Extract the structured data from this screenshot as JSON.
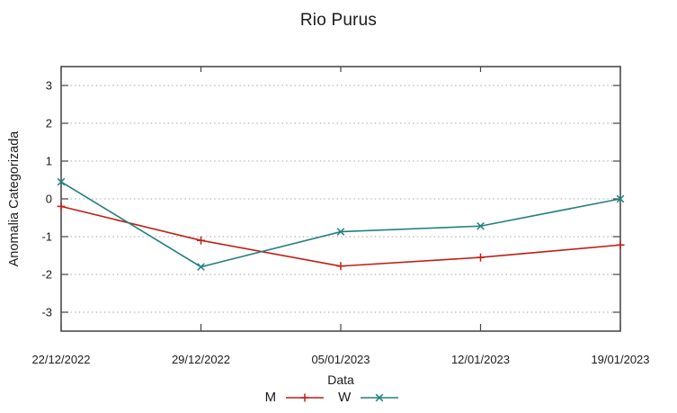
{
  "chart_data": {
    "type": "line",
    "title": "Rio Purus",
    "xlabel": "Data",
    "ylabel": "Anomalia Categorizada",
    "categories": [
      "22/12/2022",
      "29/12/2022",
      "05/01/2023",
      "12/01/2023",
      "19/01/2023"
    ],
    "yticks": [
      -3,
      -2,
      -1,
      0,
      1,
      2,
      3
    ],
    "ylim": [
      -3.5,
      3.5
    ],
    "grid": "horizontal-dotted",
    "legend_position": "bottom-center",
    "series": [
      {
        "name": "M",
        "marker": "plus",
        "color": "#c01e15",
        "values": [
          -0.2,
          -1.1,
          -1.78,
          -1.55,
          -1.22
        ]
      },
      {
        "name": "W",
        "marker": "cross",
        "color": "#257f7f",
        "values": [
          0.45,
          -1.8,
          -0.87,
          -0.72,
          0.0
        ]
      }
    ]
  },
  "style": {
    "grid_color": "#a6a6a6",
    "border_color": "#4d4d4d",
    "tick_color": "#444444",
    "text_color": "#1c1c1c"
  }
}
